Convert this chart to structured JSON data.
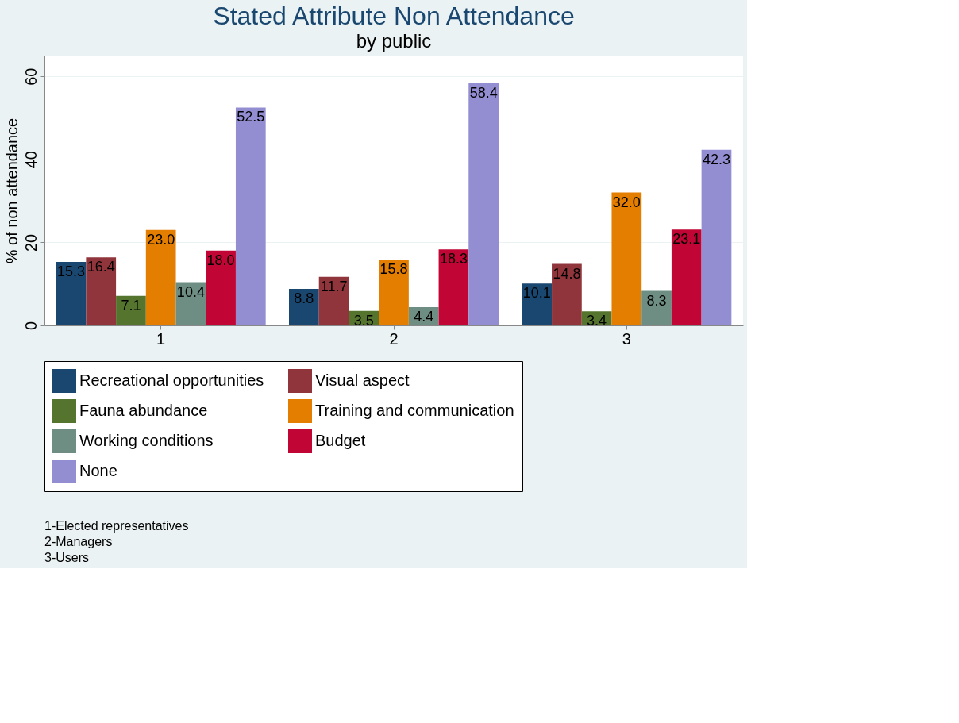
{
  "chart_data": {
    "type": "bar",
    "title": "Stated Attribute Non Attendance",
    "subtitle": "by public",
    "ylabel": "% of non attendance",
    "categories": [
      "1",
      "2",
      "3"
    ],
    "series": [
      {
        "name": "Recreational opportunities",
        "color": "#1a476f",
        "values": [
          15.3,
          8.8,
          10.1
        ],
        "value_labels": [
          "15.3",
          "8.8",
          "10.1"
        ]
      },
      {
        "name": "Visual aspect",
        "color": "#90353b",
        "values": [
          16.4,
          11.7,
          14.8
        ],
        "value_labels": [
          "16.4",
          "11.7",
          "14.8"
        ]
      },
      {
        "name": "Fauna abundance",
        "color": "#55752f",
        "values": [
          7.1,
          3.5,
          3.4
        ],
        "value_labels": [
          "7.1",
          "3.5",
          "3.4"
        ]
      },
      {
        "name": "Training and communication",
        "color": "#e37e00",
        "values": [
          23.0,
          15.8,
          32.0
        ],
        "value_labels": [
          "23.0",
          "15.8",
          "32.0"
        ]
      },
      {
        "name": "Working conditions",
        "color": "#6e8e84",
        "values": [
          10.4,
          4.4,
          8.3
        ],
        "value_labels": [
          "10.4",
          "4.4",
          "8.3"
        ]
      },
      {
        "name": "Budget",
        "color": "#c10534",
        "values": [
          18.0,
          18.3,
          23.1
        ],
        "value_labels": [
          "18.0",
          "18.3",
          "23.1"
        ]
      },
      {
        "name": "None",
        "color": "#938dd2",
        "values": [
          52.5,
          58.4,
          42.3
        ],
        "value_labels": [
          "52.5",
          "58.4",
          "42.3"
        ]
      }
    ],
    "ylim": [
      0,
      65
    ],
    "yticks": [
      0,
      20,
      40,
      60
    ],
    "grid": "y",
    "legend": "bottom",
    "annotations": [
      "1-Elected representatives",
      "2-Managers",
      "3-Users"
    ]
  }
}
